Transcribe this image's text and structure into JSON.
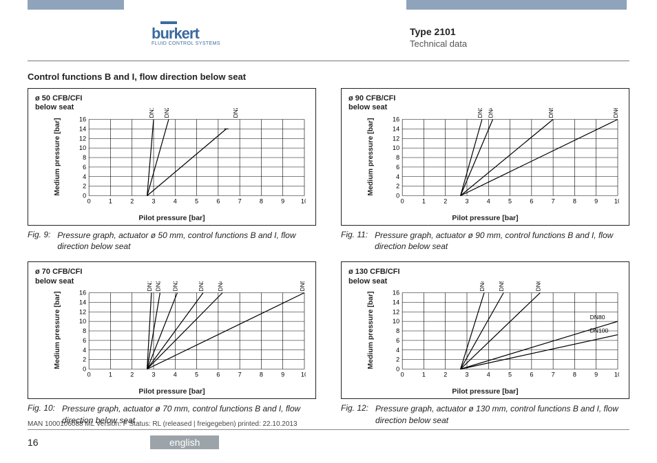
{
  "header": {
    "brand_word": "burkert",
    "brand_sub": "FLUID CONTROL SYSTEMS",
    "title": "Type 2101",
    "subtitle": "Technical data",
    "brand_color": "#3b6aa0",
    "bar_color": "#8fa4bb"
  },
  "section_title": "Control functions B and I, flow direction below seat",
  "axes": {
    "xlabel": "Pilot pressure [bar]",
    "ylabel": "Medium pressure [bar]",
    "xlim": [
      0,
      10
    ],
    "xtick_step": 1,
    "ylim": [
      0,
      16
    ],
    "ytick_step": 2,
    "tick_fontsize": 9,
    "label_fontsize": 10.5,
    "grid_color": "#000000",
    "line_color": "#000000",
    "line_width": 1.2
  },
  "charts": [
    {
      "key": "c50",
      "box_title_l1": "ø 50 CFB/CFI",
      "box_title_l2": "below seat",
      "fig_label": "Fig. 9:",
      "caption": "Pressure graph, actuator ø 50 mm, control functions B and I, flow direction below seat",
      "series": [
        {
          "label": "DN15",
          "x0": 2.7,
          "x_at_16": 3.0
        },
        {
          "label": "DN20",
          "x0": 2.7,
          "x_at_16": 3.7
        },
        {
          "label": "DN25",
          "x0": 2.7,
          "x_at_16": 6.9,
          "ymax": 14
        }
      ]
    },
    {
      "key": "c90",
      "box_title_l1": "ø 90 CFB/CFI",
      "box_title_l2": "below seat",
      "fig_label": "Fig. 11:",
      "caption": "Pressure graph, actuator ø 90 mm, control functions B and I, flow direction below seat",
      "series": [
        {
          "label": "DN32",
          "x0": 2.7,
          "x_at_16": 3.7
        },
        {
          "label": "DN40",
          "x0": 2.7,
          "x_at_16": 4.2
        },
        {
          "label": "DN50",
          "x0": 2.7,
          "x_at_16": 7.0
        },
        {
          "label": "DN65",
          "x0": 2.7,
          "x_at_16": 10.0
        }
      ]
    },
    {
      "key": "c70",
      "box_title_l1": "ø 70 CFB/CFI",
      "box_title_l2": "below seat",
      "fig_label": "Fig. 10:",
      "caption": "Pressure graph, actuator ø 70 mm, control functions B and I, flow direction below seat",
      "series": [
        {
          "label": "DN15",
          "x0": 2.7,
          "x_at_16": 2.9
        },
        {
          "label": "DN20",
          "x0": 2.7,
          "x_at_16": 3.3
        },
        {
          "label": "DN25",
          "x0": 2.7,
          "x_at_16": 4.1
        },
        {
          "label": "DN32",
          "x0": 2.7,
          "x_at_16": 5.3
        },
        {
          "label": "DN40",
          "x0": 2.7,
          "x_at_16": 6.2
        },
        {
          "label": "DN50",
          "x0": 2.7,
          "x_at_16": 10.0
        }
      ]
    },
    {
      "key": "c130",
      "box_title_l1": "ø 130 CFB/CFI",
      "box_title_l2": "below seat",
      "fig_label": "Fig. 12:",
      "caption": "Pressure graph, actuator ø 130 mm, control functions B and I, flow direction below seat",
      "series": [
        {
          "label": "DN40",
          "x0": 2.7,
          "x_at_16": 3.8
        },
        {
          "label": "DN50",
          "x0": 2.7,
          "x_at_16": 4.7
        },
        {
          "label": "DN65",
          "x0": 2.7,
          "x_at_16": 6.4
        }
      ],
      "inline_series": [
        {
          "label": "DN80",
          "x0": 2.7,
          "x_end": 10.0,
          "y_end": 10.0
        },
        {
          "label": "DN100",
          "x0": 2.7,
          "x_end": 10.0,
          "y_end": 7.2
        }
      ]
    }
  ],
  "footer": {
    "doc_line": "MAN 1000106088 ML Version: F Status: RL (released | freigegeben) printed: 22.10.2013",
    "page": "16",
    "language": "english",
    "lang_bg": "#9ca4aa"
  }
}
